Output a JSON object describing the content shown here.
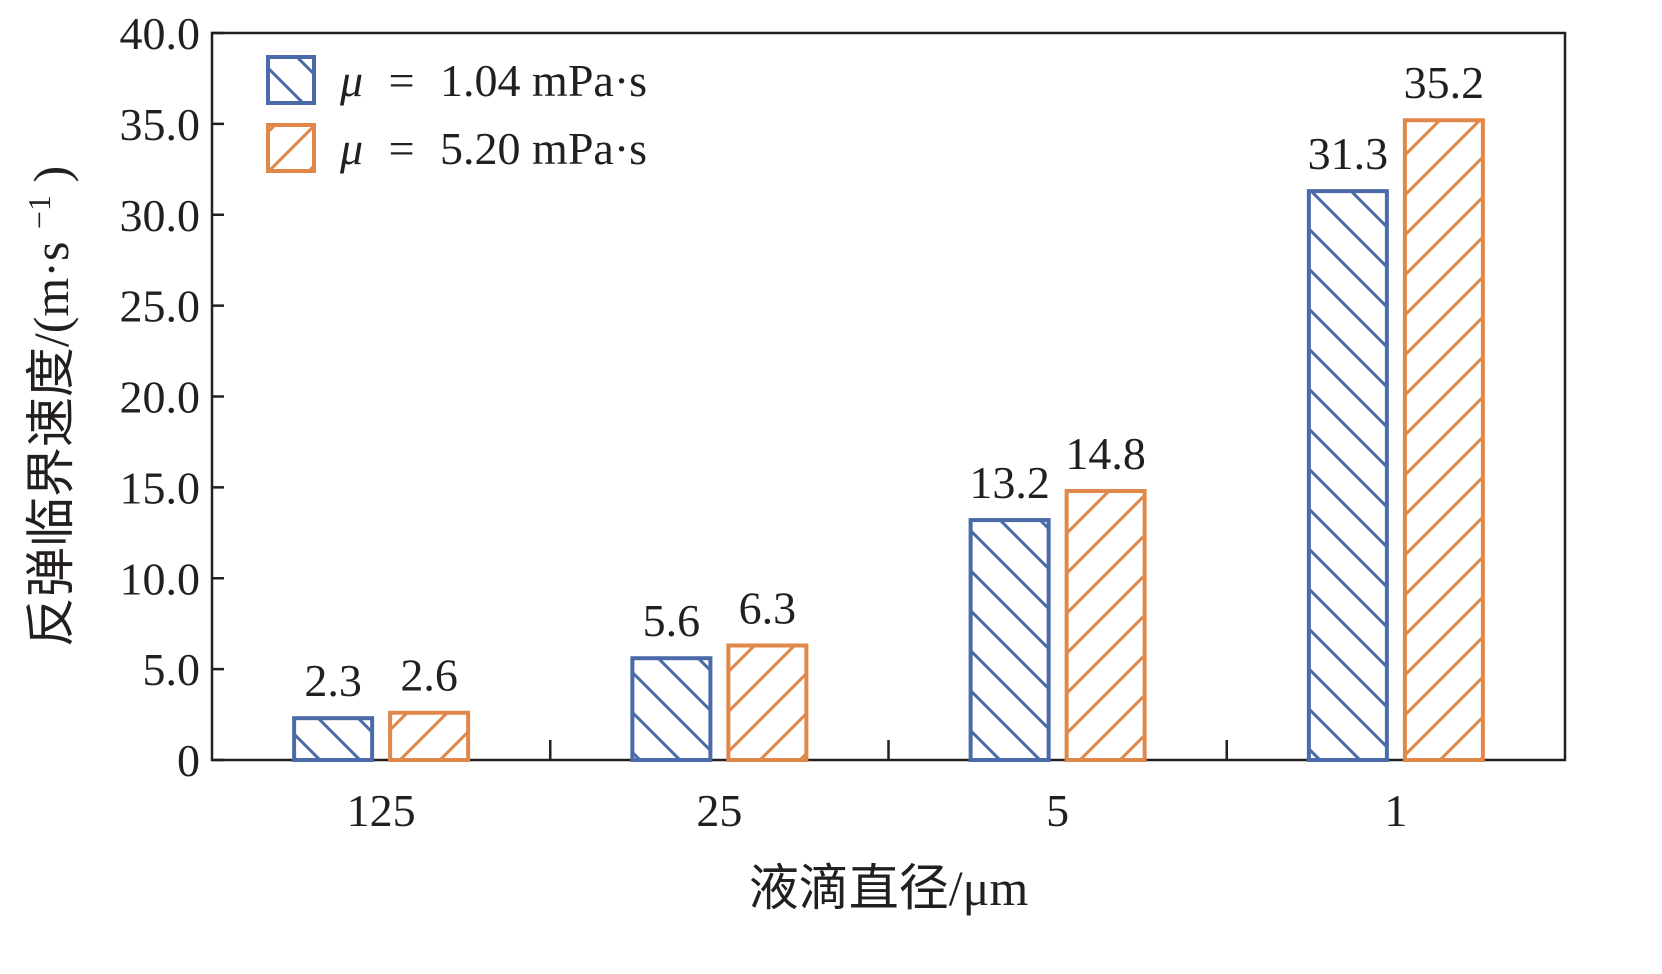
{
  "chart_data": {
    "type": "bar",
    "categories": [
      "125",
      "25",
      "5",
      "1"
    ],
    "series": [
      {
        "name": "1.04 mPa·s",
        "values": [
          2.3,
          5.6,
          13.2,
          31.3
        ],
        "labels": [
          "2.3",
          "5.6",
          "13.2",
          "31.3"
        ],
        "color": "#4a6aa8",
        "hatch": "backslash"
      },
      {
        "name": "5.20 mPa·s",
        "values": [
          2.6,
          6.3,
          14.8,
          35.2
        ],
        "labels": [
          "2.6",
          "6.3",
          "14.8",
          "35.2"
        ],
        "color": "#e0874a",
        "hatch": "slash"
      }
    ],
    "legend_symbol": "μ",
    "legend_eq": "=",
    "xlabel": "液滴直径/μm",
    "ylabel": "反弹临界速度/(m·s",
    "ylabel_sup": "−1",
    "ylabel_close": ")",
    "ylim": [
      0,
      40
    ],
    "yticks": [
      0,
      5,
      10,
      15,
      20,
      25,
      30,
      35,
      40
    ],
    "yticklabels": [
      "0",
      "5.0",
      "10.0",
      "15.0",
      "20.0",
      "25.0",
      "30.0",
      "35.0",
      "40.0"
    ],
    "legend_position": "top-left",
    "grid": false
  }
}
